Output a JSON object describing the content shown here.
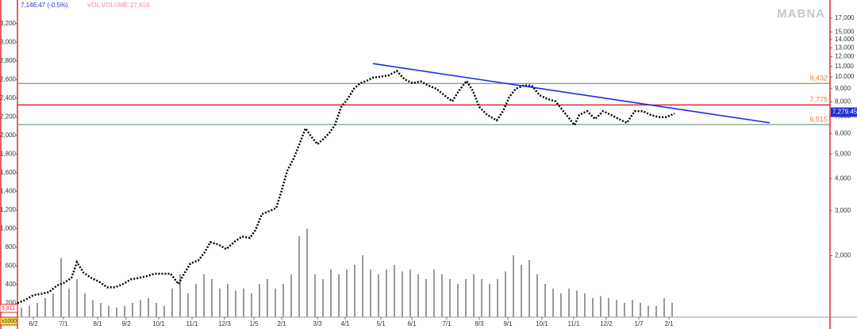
{
  "chart_data": {
    "type": "stock",
    "quote": "7,146.47 (-0.5%)",
    "volume_label": "VOL VOLUME:27,616",
    "watermark": "MABNA",
    "last_volume": "5,811",
    "volume_unit": "x1000",
    "xlim": [
      0,
      1024
    ],
    "xticks": [
      {
        "value": 20,
        "label": "6/2"
      },
      {
        "value": 58,
        "label": "7/1"
      },
      {
        "value": 101,
        "label": "8/1"
      },
      {
        "value": 137,
        "label": "9/2"
      },
      {
        "value": 178,
        "label": "10/1"
      },
      {
        "value": 220,
        "label": "11/1"
      },
      {
        "value": 261,
        "label": "12/3"
      },
      {
        "value": 298,
        "label": "1/5"
      },
      {
        "value": 333,
        "label": "2/1"
      },
      {
        "value": 378,
        "label": "3/3"
      },
      {
        "value": 413,
        "label": "4/1"
      },
      {
        "value": 458,
        "label": "5/1"
      },
      {
        "value": 497,
        "label": "6/1"
      },
      {
        "value": 541,
        "label": "7/1"
      },
      {
        "value": 582,
        "label": "8/3"
      },
      {
        "value": 618,
        "label": "9/1"
      },
      {
        "value": 661,
        "label": "10/1"
      },
      {
        "value": 701,
        "label": "11/1"
      },
      {
        "value": 742,
        "label": "12/2"
      },
      {
        "value": 783,
        "label": "1/7"
      },
      {
        "value": 821,
        "label": "2/1"
      }
    ],
    "ylim": [
      50,
      3410
    ],
    "yticks": [
      200,
      400,
      600,
      800,
      {
        "value": 1000,
        "label": "1,000"
      },
      {
        "value": 1200,
        "label": "1,200"
      },
      {
        "value": 1400,
        "label": "1,400"
      },
      {
        "value": 1600,
        "label": "1,600"
      },
      {
        "value": 1800,
        "label": "1,800"
      },
      {
        "value": 2000,
        "label": "2,000"
      },
      {
        "value": 2200,
        "label": "2,200"
      },
      {
        "value": 2400,
        "label": "2,400"
      },
      {
        "value": 2600,
        "label": "2,600"
      },
      {
        "value": 2800,
        "label": "2,800"
      },
      {
        "value": 3000,
        "label": "3,000"
      },
      {
        "value": 3200,
        "label": "3,200"
      }
    ],
    "y2lim": [
      1150,
      19300
    ],
    "y2log": true,
    "y2ticks": [
      {
        "value": 17000,
        "label": "17,000"
      },
      {
        "value": 15000,
        "label": "15,000"
      },
      {
        "value": 14000,
        "label": "14,000"
      },
      {
        "value": 13000,
        "label": "13,000"
      },
      {
        "value": 12000,
        "label": "12,000"
      },
      {
        "value": 11000,
        "label": "11,000"
      },
      {
        "value": 10000,
        "label": "10,000"
      },
      {
        "value": 9000,
        "label": "9,000"
      },
      {
        "value": 8000,
        "label": "8,000"
      },
      {
        "value": 7000,
        "label": "7,000"
      },
      {
        "value": 6000,
        "label": "6,000"
      },
      {
        "value": 5000,
        "label": "5,000"
      },
      {
        "value": 4000,
        "label": "4,000"
      },
      {
        "value": 3000,
        "label": "3,000"
      },
      {
        "value": 2000,
        "label": "2,000"
      }
    ],
    "price": {
      "color": "#000000",
      "x": [
        0,
        10,
        20,
        30,
        40,
        50,
        58,
        68,
        75,
        83,
        93,
        103,
        113,
        123,
        133,
        143,
        153,
        163,
        173,
        183,
        193,
        203,
        210,
        218,
        228,
        236,
        243,
        253,
        263,
        273,
        283,
        293,
        300,
        308,
        318,
        326,
        333,
        340,
        348,
        356,
        363,
        370,
        378,
        386,
        393,
        400,
        408,
        416,
        424,
        432,
        440,
        448,
        458,
        468,
        478,
        488,
        498,
        508,
        518,
        528,
        538,
        548,
        556,
        566,
        574,
        582,
        592,
        604,
        612,
        620,
        628,
        638,
        648,
        658,
        668,
        678,
        688,
        696,
        702,
        708,
        718,
        728,
        738,
        748,
        758,
        768,
        778,
        788,
        798,
        808,
        818,
        828
      ],
      "values": [
        200,
        235,
        285,
        300,
        320,
        390,
        415,
        470,
        640,
        530,
        470,
        430,
        370,
        370,
        405,
        455,
        470,
        490,
        515,
        515,
        515,
        405,
        515,
        625,
        660,
        745,
        855,
        830,
        780,
        855,
        915,
        900,
        985,
        1155,
        1190,
        1220,
        1410,
        1620,
        1750,
        1920,
        2075,
        1990,
        1905,
        1965,
        2025,
        2110,
        2305,
        2390,
        2500,
        2560,
        2585,
        2620,
        2630,
        2645,
        2690,
        2600,
        2560,
        2580,
        2535,
        2500,
        2430,
        2365,
        2475,
        2585,
        2475,
        2305,
        2220,
        2160,
        2260,
        2415,
        2500,
        2535,
        2535,
        2430,
        2390,
        2365,
        2260,
        2175,
        2110,
        2220,
        2260,
        2175,
        2260,
        2220,
        2175,
        2135,
        2260,
        2260,
        2220,
        2195,
        2195,
        2235
      ]
    },
    "volume": {
      "color": "#9a9a9a",
      "ylim": [
        0,
        100
      ],
      "x": [
        5,
        15,
        25,
        35,
        45,
        55,
        65,
        75,
        85,
        95,
        105,
        115,
        125,
        135,
        145,
        155,
        165,
        175,
        185,
        195,
        205,
        215,
        225,
        235,
        245,
        255,
        265,
        275,
        285,
        295,
        305,
        315,
        325,
        335,
        345,
        355,
        365,
        375,
        385,
        395,
        405,
        415,
        425,
        435,
        445,
        455,
        465,
        475,
        485,
        495,
        505,
        515,
        525,
        535,
        545,
        555,
        565,
        575,
        585,
        595,
        605,
        615,
        625,
        635,
        645,
        655,
        665,
        675,
        685,
        695,
        705,
        715,
        725,
        735,
        745,
        755,
        765,
        775,
        785,
        795,
        805,
        815,
        825
      ],
      "values": [
        10,
        12,
        15,
        20,
        25,
        62,
        30,
        40,
        25,
        18,
        15,
        12,
        10,
        12,
        15,
        18,
        20,
        15,
        12,
        30,
        45,
        25,
        35,
        45,
        40,
        30,
        35,
        28,
        30,
        25,
        35,
        40,
        30,
        35,
        45,
        85,
        93,
        45,
        40,
        50,
        45,
        50,
        55,
        65,
        50,
        45,
        50,
        55,
        48,
        50,
        45,
        40,
        50,
        45,
        40,
        35,
        40,
        45,
        40,
        35,
        40,
        48,
        65,
        55,
        60,
        45,
        35,
        30,
        25,
        30,
        28,
        25,
        20,
        22,
        20,
        18,
        15,
        18,
        15,
        12,
        12,
        20,
        15
      ]
    },
    "levels": [
      {
        "value": 9432,
        "label": "9,432",
        "color": "#4f8a5b"
      },
      {
        "value": 7775,
        "label": "7,775",
        "color": "#e0282e"
      },
      {
        "value": 6515,
        "label": "6,515",
        "color": "#4f8a5b"
      }
    ],
    "level_label_color": "#e8803a",
    "trendline": {
      "color": "#1a2ee0",
      "x": [
        448,
        948
      ],
      "values": [
        11280,
        6620
      ]
    },
    "last_price": {
      "value": 7279.45,
      "label": "7,279.45",
      "color": "#1f2fd0"
    }
  }
}
